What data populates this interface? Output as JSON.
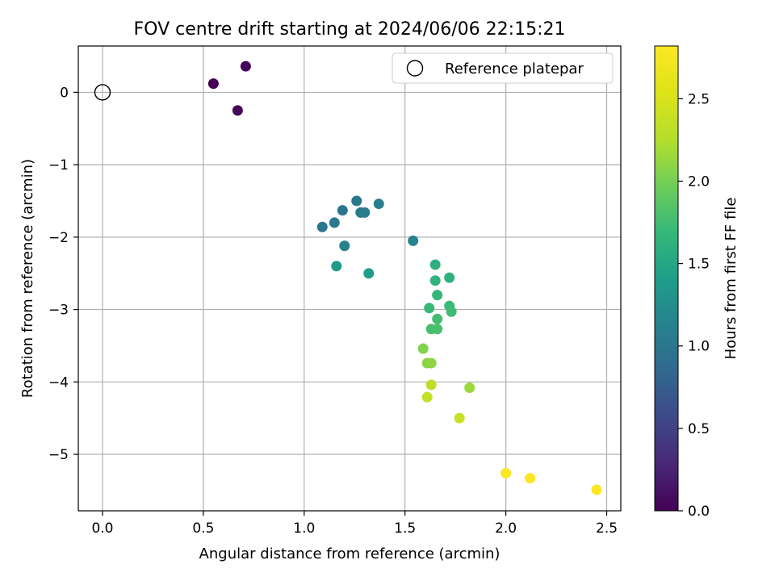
{
  "chart_data": {
    "type": "scatter",
    "title": "FOV centre drift starting at 2024/06/06 22:15:21",
    "xlabel": "Angular distance from reference (arcmin)",
    "ylabel": "Rotation from reference (arcmin)",
    "xlim": [
      -0.12,
      2.57
    ],
    "ylim": [
      -5.78,
      0.64
    ],
    "xticks": [
      0.0,
      0.5,
      1.0,
      1.5,
      2.0,
      2.5
    ],
    "xtick_labels": [
      "0.0",
      "0.5",
      "1.0",
      "1.5",
      "2.0",
      "2.5"
    ],
    "yticks": [
      0,
      -1,
      -2,
      -3,
      -4,
      -5
    ],
    "ytick_labels": [
      "0",
      "−1",
      "−2",
      "−3",
      "−4",
      "−5"
    ],
    "grid": true,
    "legend": {
      "placement": "top-right",
      "entries": [
        "Reference platepar"
      ]
    },
    "reference_point": {
      "x": 0.0,
      "y": 0.0
    },
    "colorbar": {
      "label": "Hours from first FF file",
      "range": [
        0.0,
        2.82
      ],
      "ticks": [
        0.0,
        0.5,
        1.0,
        1.5,
        2.0,
        2.5
      ],
      "tick_labels": [
        "0.0",
        "0.5",
        "1.0",
        "1.5",
        "2.0",
        "2.5"
      ],
      "colormap": "viridis"
    },
    "points": [
      {
        "x": 0.55,
        "y": 0.12,
        "hours": 0.0
      },
      {
        "x": 0.71,
        "y": 0.36,
        "hours": 0.02
      },
      {
        "x": 0.67,
        "y": -0.25,
        "hours": 0.04
      },
      {
        "x": 1.09,
        "y": -1.86,
        "hours": 1.0
      },
      {
        "x": 1.15,
        "y": -1.8,
        "hours": 1.03
      },
      {
        "x": 1.19,
        "y": -1.63,
        "hours": 1.0
      },
      {
        "x": 1.26,
        "y": -1.5,
        "hours": 1.02
      },
      {
        "x": 1.28,
        "y": -1.66,
        "hours": 1.04
      },
      {
        "x": 1.3,
        "y": -1.66,
        "hours": 1.06
      },
      {
        "x": 1.37,
        "y": -1.54,
        "hours": 1.08
      },
      {
        "x": 1.2,
        "y": -2.12,
        "hours": 1.12
      },
      {
        "x": 1.54,
        "y": -2.05,
        "hours": 1.15
      },
      {
        "x": 1.16,
        "y": -2.4,
        "hours": 1.38
      },
      {
        "x": 1.32,
        "y": -2.5,
        "hours": 1.4
      },
      {
        "x": 1.65,
        "y": -2.38,
        "hours": 1.6
      },
      {
        "x": 1.72,
        "y": -2.56,
        "hours": 1.62
      },
      {
        "x": 1.65,
        "y": -2.6,
        "hours": 1.65
      },
      {
        "x": 1.66,
        "y": -2.8,
        "hours": 1.68
      },
      {
        "x": 1.62,
        "y": -2.98,
        "hours": 1.7
      },
      {
        "x": 1.72,
        "y": -2.95,
        "hours": 1.72
      },
      {
        "x": 1.73,
        "y": -3.03,
        "hours": 1.74
      },
      {
        "x": 1.66,
        "y": -3.13,
        "hours": 1.76
      },
      {
        "x": 1.63,
        "y": -3.27,
        "hours": 1.78
      },
      {
        "x": 1.66,
        "y": -3.27,
        "hours": 1.8
      },
      {
        "x": 1.59,
        "y": -3.54,
        "hours": 2.05
      },
      {
        "x": 1.61,
        "y": -3.74,
        "hours": 2.08
      },
      {
        "x": 1.63,
        "y": -3.74,
        "hours": 2.1
      },
      {
        "x": 1.82,
        "y": -4.08,
        "hours": 2.15
      },
      {
        "x": 1.63,
        "y": -4.04,
        "hours": 2.3
      },
      {
        "x": 1.61,
        "y": -4.21,
        "hours": 2.35
      },
      {
        "x": 1.77,
        "y": -4.5,
        "hours": 2.38
      },
      {
        "x": 2.0,
        "y": -5.26,
        "hours": 2.8
      },
      {
        "x": 2.12,
        "y": -5.33,
        "hours": 2.8
      },
      {
        "x": 2.45,
        "y": -5.49,
        "hours": 2.82
      }
    ]
  }
}
